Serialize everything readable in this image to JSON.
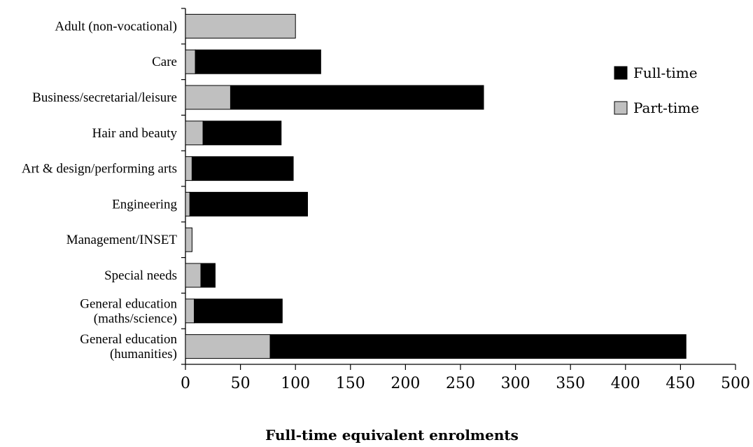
{
  "chart_data": {
    "type": "bar",
    "orientation": "horizontal",
    "stacked": true,
    "title": "",
    "xlabel": "Full-time equivalent enrolments",
    "ylabel": "",
    "xlim": [
      0,
      500
    ],
    "x_ticks": [
      "0",
      "50",
      "100",
      "150",
      "200",
      "250",
      "300",
      "350",
      "400",
      "450",
      "500"
    ],
    "grid": false,
    "legend_position": "right",
    "categories": [
      [
        "Adult (non-vocational)"
      ],
      [
        "Care"
      ],
      [
        "Business/secretarial/leisure"
      ],
      [
        "Hair and beauty"
      ],
      [
        "Art & design/performing arts"
      ],
      [
        "Engineering"
      ],
      [
        "Management/INSET"
      ],
      [
        "Special needs"
      ],
      [
        "General education",
        "(maths/science)"
      ],
      [
        "General education",
        "(humanities)"
      ]
    ],
    "series": [
      {
        "name": "Part-time",
        "color": "#c0c0c0",
        "values": [
          100,
          9,
          41,
          16,
          6,
          4,
          6,
          14,
          8,
          77
        ]
      },
      {
        "name": "Full-time",
        "color": "#000000",
        "values": [
          0,
          114,
          230,
          71,
          92,
          107,
          0,
          13,
          80,
          378
        ]
      }
    ],
    "legend": [
      "Full-time",
      "Part-time"
    ]
  }
}
